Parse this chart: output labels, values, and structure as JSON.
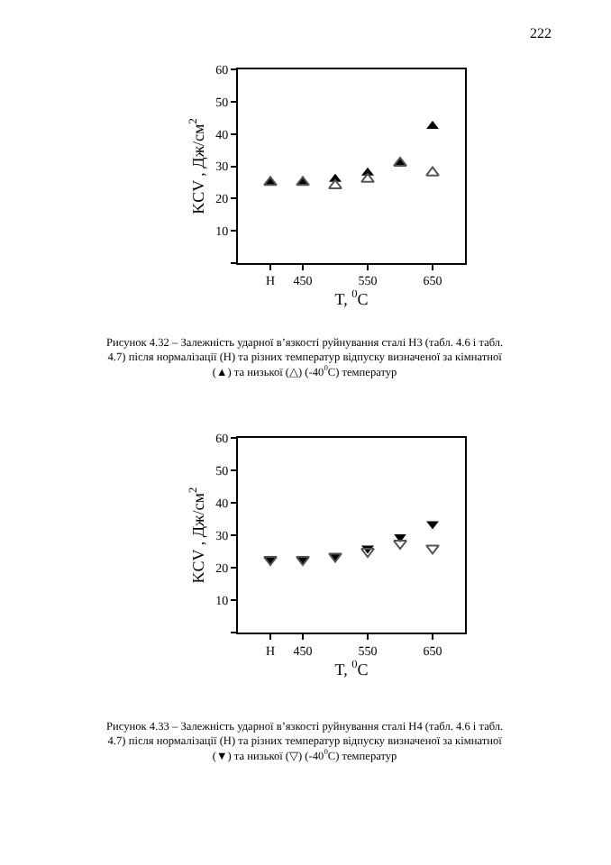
{
  "chart_data": [
    {
      "type": "scatter",
      "x": [
        400,
        450,
        500,
        550,
        600,
        650
      ],
      "xlabel": "T, $^{0}$C",
      "ylabel": "KCV , Дж/см$^{2}$",
      "xlim": [
        350,
        700
      ],
      "xticks": [
        {
          "value": 400,
          "label": "Н"
        },
        450,
        550,
        650
      ],
      "ylim": [
        0,
        60
      ],
      "yticks": [
        {
          "value": 0,
          "label": null
        },
        10,
        20,
        30,
        40,
        50,
        60
      ],
      "marker": "triangle",
      "series": [
        {
          "color": "#000000",
          "values": [
            25,
            25,
            26,
            28,
            31,
            42.5
          ]
        },
        {
          "color": "#555555",
          "marker": "triangle_open",
          "values": [
            25,
            25,
            24,
            26,
            31,
            28
          ]
        }
      ],
      "annotations": [
        "222",
        "Рисунок 4.32 – Залежність ударної в’язкості руйнування сталі Н3 (табл. 4.6 і табл. 4.7) після нормалізації (Н) та різних температур відпуску визначеної за кімнатної (▲) та низької (△) (-40$^{0}$C) температур"
      ]
    },
    {
      "type": "scatter",
      "x": [
        400,
        450,
        500,
        550,
        600,
        650
      ],
      "xlabel": "T, $^{0}$C",
      "ylabel": "KCV , Дж/см$^{2}$",
      "xlim": [
        350,
        700
      ],
      "xticks": [
        {
          "value": 400,
          "label": "Н"
        },
        450,
        550,
        650
      ],
      "ylim": [
        0,
        60
      ],
      "yticks": [
        {
          "value": 0,
          "label": null
        },
        10,
        20,
        30,
        40,
        50,
        60
      ],
      "marker": "triangle_down",
      "series": [
        {
          "color": "#000000",
          "values": [
            22.5,
            22.5,
            23.5,
            26,
            29.5,
            33.5
          ]
        },
        {
          "color": "#555555",
          "marker": "triangle_down_open",
          "values": [
            22.5,
            22.5,
            23.5,
            25,
            27.5,
            26
          ]
        }
      ],
      "annotations": [
        "Рисунок 4.33 – Залежність ударної в’язкості руйнування сталі Н4 (табл. 4.6 і табл. 4.7) після нормалізації (Н) та різних температур відпуску визначеної за кімнатної (▼) та низької (▽) (-40$^{0}$C) температур"
      ]
    }
  ]
}
